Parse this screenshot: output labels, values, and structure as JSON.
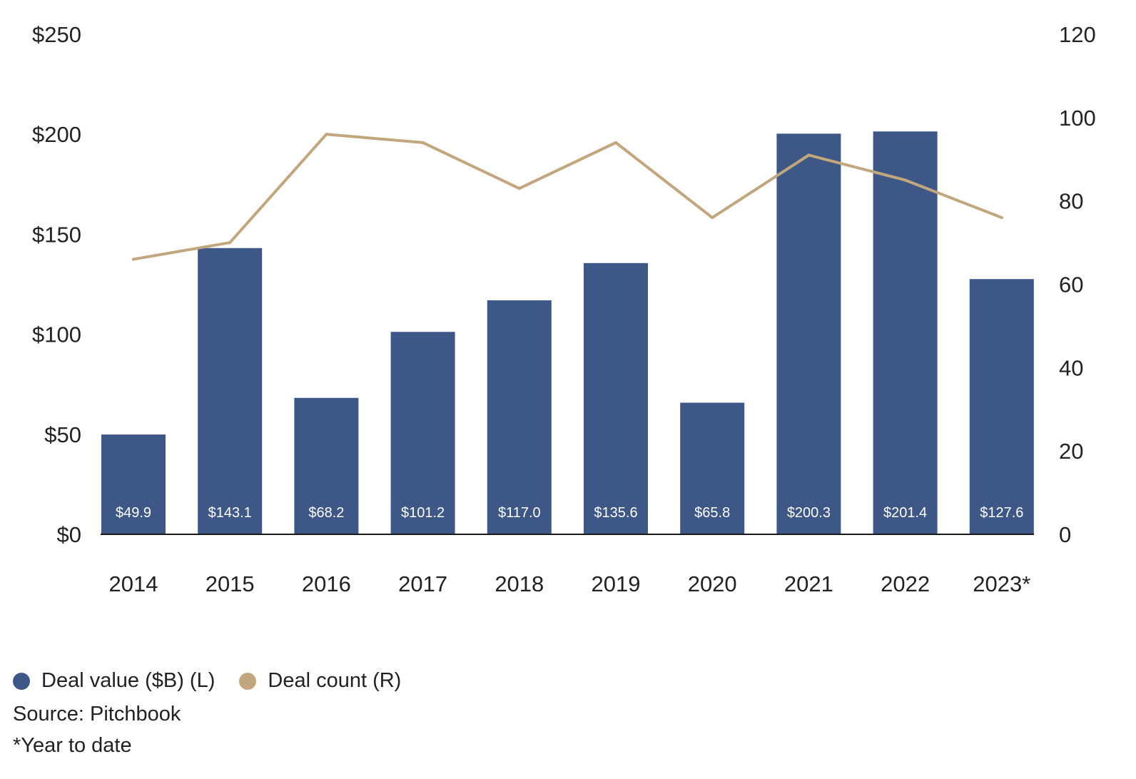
{
  "chart_data": {
    "type": "bar",
    "categories": [
      "2014",
      "2015",
      "2016",
      "2017",
      "2018",
      "2019",
      "2020",
      "2021",
      "2022",
      "2023*"
    ],
    "series": [
      {
        "name": "Deal value ($B) (L)",
        "type": "bar",
        "axis": "left",
        "color": "#3d5787",
        "values": [
          49.9,
          143.1,
          68.2,
          101.2,
          117.0,
          135.6,
          65.8,
          200.3,
          201.4,
          127.6
        ],
        "labels": [
          "$49.9",
          "$143.1",
          "$68.2",
          "$101.2",
          "$117.0",
          "$135.6",
          "$65.8",
          "$200.3",
          "$201.4",
          "$127.6"
        ]
      },
      {
        "name": "Deal count (R)",
        "type": "line",
        "axis": "right",
        "color": "#c2a67d",
        "values": [
          66,
          70,
          96,
          94,
          83,
          94,
          76,
          91,
          85,
          76
        ]
      }
    ],
    "y_left": {
      "ylim": [
        0,
        250
      ],
      "ticks": [
        0,
        50,
        100,
        150,
        200,
        250
      ],
      "tick_labels": [
        "$0",
        "$50",
        "$100",
        "$150",
        "$200",
        "$250"
      ]
    },
    "y_right": {
      "ylim": [
        0,
        120
      ],
      "ticks": [
        0,
        20,
        40,
        60,
        80,
        100,
        120
      ],
      "tick_labels": [
        "0",
        "20",
        "40",
        "60",
        "80",
        "100",
        "120"
      ]
    },
    "grid": false,
    "legend_position": "bottom-left"
  },
  "legend": {
    "value_label": "Deal value ($B) (L)",
    "count_label": "Deal count (R)"
  },
  "footnotes": {
    "source": "Source: Pitchbook",
    "note": "*Year to date"
  }
}
